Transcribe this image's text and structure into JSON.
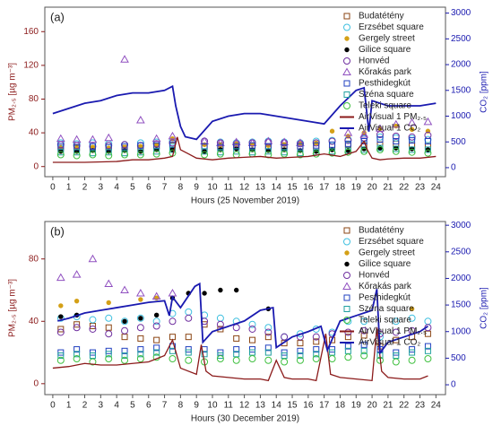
{
  "chart_data": [
    {
      "type": "combo",
      "label": "(a)",
      "xlabel": "Hours (25 November 2019)",
      "ylabel": "PM₂.₅ [µg m⁻³]",
      "y2label": "CO₂ [ppm]",
      "legend": "upper right",
      "xlim": [
        -0.5,
        24.6
      ],
      "xticks": [
        0,
        1,
        2,
        3,
        4,
        5,
        6,
        7,
        8,
        9,
        10,
        11,
        12,
        13,
        14,
        15,
        16,
        17,
        18,
        19,
        20,
        21,
        22,
        23,
        24
      ],
      "ylim": [
        -12,
        189
      ],
      "yticks": [
        0,
        40,
        80,
        120,
        160
      ],
      "y2lim": [
        -175,
        3115
      ],
      "y2ticks": [
        0,
        500,
        1000,
        1500,
        2000,
        2500,
        3000
      ],
      "x": [
        0.5,
        1.5,
        2.5,
        3.5,
        4.5,
        5.5,
        6.5,
        7.5,
        8.5,
        9.5,
        10.5,
        11.5,
        12.5,
        13.5,
        14.5,
        15.5,
        16.5,
        17.5,
        18.5,
        19.5,
        20.5,
        21.5,
        22.5,
        23.5
      ],
      "series": [
        {
          "name": "Budatétény",
          "color": "#8b4513",
          "marker": "square",
          "values": [
            22,
            22,
            21,
            23,
            22,
            22,
            24,
            25,
            null,
            24,
            25,
            24,
            23,
            24,
            25,
            24,
            23,
            24,
            26,
            25,
            26,
            27,
            25,
            24
          ]
        },
        {
          "name": "Erzsébet square",
          "color": "#40c0e0",
          "marker": "circle",
          "values": [
            28,
            27,
            28,
            27,
            26,
            28,
            29,
            30,
            null,
            30,
            29,
            28,
            29,
            30,
            29,
            28,
            30,
            31,
            32,
            33,
            35,
            34,
            33,
            32
          ]
        },
        {
          "name": "Gergely street",
          "color": "#d4a017",
          "marker": "dot",
          "values": [
            22,
            22,
            23,
            22,
            23,
            24,
            25,
            33,
            null,
            26,
            25,
            27,
            26,
            25,
            26,
            27,
            28,
            42,
            36,
            40,
            45,
            48,
            44,
            42
          ]
        },
        {
          "name": "Gilice square",
          "color": "#000000",
          "marker": "dot",
          "values": [
            18,
            18,
            19,
            18,
            19,
            18,
            20,
            20,
            null,
            18,
            20,
            21,
            20,
            19,
            20,
            19,
            18,
            20,
            19,
            21,
            22,
            22,
            21,
            20
          ]
        },
        {
          "name": "Honvéd",
          "color": "#7030a0",
          "marker": "circle",
          "values": [
            26,
            25,
            24,
            25,
            26,
            25,
            27,
            28,
            null,
            30,
            28,
            27,
            28,
            29,
            28,
            27,
            28,
            30,
            31,
            34,
            38,
            36,
            35,
            37
          ]
        },
        {
          "name": "Kőrakás park",
          "color": "#9050c0",
          "marker": "triangle",
          "values": [
            33,
            32,
            32,
            34,
            127,
            55,
            33,
            36,
            null,
            30,
            28,
            29,
            28,
            30,
            29,
            28,
            null,
            null,
            40,
            38,
            45,
            50,
            52,
            53
          ]
        },
        {
          "name": "Pesthidegkút",
          "color": "#2040c0",
          "marker": "square",
          "values": [
            24,
            23,
            24,
            23,
            24,
            25,
            25,
            26,
            null,
            24,
            23,
            24,
            25,
            24,
            23,
            24,
            25,
            26,
            27,
            30,
            32,
            30,
            31,
            30
          ]
        },
        {
          "name": "Széna square",
          "color": "#20a0a0",
          "marker": "square",
          "values": [
            17,
            17,
            16,
            17,
            16,
            17,
            18,
            20,
            null,
            18,
            17,
            18,
            17,
            18,
            17,
            16,
            17,
            18,
            19,
            20,
            22,
            21,
            20,
            20
          ]
        },
        {
          "name": "Teleki square",
          "color": "#40c040",
          "marker": "circle",
          "values": [
            14,
            13,
            14,
            13,
            14,
            14,
            15,
            16,
            null,
            14,
            15,
            14,
            15,
            14,
            15,
            14,
            15,
            16,
            17,
            18,
            20,
            18,
            17,
            16
          ]
        },
        {
          "name": "AirVisual 1 PM₂.₅",
          "color": "#8b1a1a",
          "marker": "line",
          "x": [
            0,
            2,
            4,
            5,
            6,
            7,
            7.5,
            7.8,
            8,
            8.5,
            9,
            10,
            11,
            12,
            13,
            14,
            15,
            16,
            17,
            18,
            19,
            19.5,
            19.7,
            20,
            20.5,
            21,
            22,
            23,
            24
          ],
          "values": [
            5,
            5,
            6,
            8,
            8,
            10,
            12,
            35,
            20,
            15,
            10,
            8,
            10,
            11,
            12,
            10,
            11,
            12,
            15,
            12,
            18,
            30,
            20,
            10,
            8,
            9,
            10,
            10,
            12
          ]
        },
        {
          "name": "AirVisual 1 CO₂",
          "color": "#1a1ab0",
          "marker": "line",
          "axis": "y2",
          "x": [
            0,
            1,
            2,
            3,
            4,
            5,
            6,
            7,
            7.5,
            7.7,
            8,
            8.3,
            9,
            10,
            11,
            12,
            13,
            14,
            15,
            16,
            17,
            18,
            19,
            19.5,
            19.8,
            20,
            21,
            22,
            23,
            24
          ],
          "values": [
            1050,
            1150,
            1250,
            1300,
            1400,
            1450,
            1450,
            1500,
            1580,
            1200,
            800,
            600,
            550,
            900,
            1000,
            1050,
            1050,
            1000,
            950,
            900,
            850,
            1200,
            1500,
            1550,
            700,
            1300,
            1200,
            1200,
            1200,
            1250
          ]
        }
      ]
    },
    {
      "type": "combo",
      "label": "(b)",
      "xlabel": "Hours (30 December 2019)",
      "ylabel": "PM₂.₅ [µg m⁻³]",
      "y2label": "CO₂ [ppm]",
      "legend": "upper right",
      "xlim": [
        -0.5,
        24.6
      ],
      "xticks": [
        0,
        1,
        2,
        3,
        4,
        5,
        6,
        7,
        8,
        9,
        10,
        11,
        12,
        13,
        14,
        15,
        16,
        17,
        18,
        19,
        20,
        21,
        22,
        23,
        24
      ],
      "ylim": [
        -7,
        104
      ],
      "yticks": [
        0,
        40,
        80
      ],
      "y2lim": [
        -185,
        3070
      ],
      "y2ticks": [
        0,
        500,
        1000,
        1500,
        2000,
        2500,
        3000
      ],
      "x": [
        0.5,
        1.5,
        2.5,
        3.5,
        4.5,
        5.5,
        6.5,
        7.5,
        8.5,
        9.5,
        10.5,
        11.5,
        12.5,
        13.5,
        14.5,
        15.5,
        16.5,
        17.5,
        18.5,
        19.5,
        20.5,
        21.5,
        22.5,
        23.5
      ],
      "series": [
        {
          "name": "Budatétény",
          "color": "#8b4513",
          "marker": "square",
          "values": [
            35,
            38,
            37,
            36,
            30,
            29,
            28,
            30,
            30,
            38,
            35,
            29,
            28,
            30,
            26,
            26,
            27,
            28,
            30,
            31,
            24,
            28,
            30,
            32
          ]
        },
        {
          "name": "Erzsébet square",
          "color": "#40c0e0",
          "marker": "circle",
          "values": [
            42,
            43,
            41,
            42,
            40,
            42,
            40,
            45,
            46,
            44,
            42,
            40,
            38,
            36,
            30,
            32,
            35,
            33,
            40,
            40,
            30,
            40,
            42,
            40
          ]
        },
        {
          "name": "Gergely street",
          "color": "#d4a017",
          "marker": "dot",
          "values": [
            50,
            53,
            null,
            52,
            null,
            54,
            55,
            null,
            58,
            null,
            null,
            null,
            null,
            null,
            null,
            null,
            null,
            null,
            null,
            null,
            null,
            null,
            48,
            null
          ]
        },
        {
          "name": "Gilice square",
          "color": "#000000",
          "marker": "dot",
          "values": [
            43,
            44,
            null,
            null,
            40,
            42,
            44,
            55,
            58,
            58,
            60,
            60,
            null,
            48,
            null,
            null,
            null,
            null,
            null,
            null,
            null,
            null,
            null,
            null
          ]
        },
        {
          "name": "Honvéd",
          "color": "#7030a0",
          "marker": "circle",
          "values": [
            33,
            36,
            35,
            32,
            34,
            36,
            37,
            40,
            42,
            40,
            38,
            36,
            35,
            33,
            30,
            30,
            30,
            32,
            33,
            34,
            32,
            33,
            34,
            36
          ]
        },
        {
          "name": "Kőrakás park",
          "color": "#9050c0",
          "marker": "triangle",
          "values": [
            68,
            70,
            80,
            64,
            60,
            58,
            56,
            58,
            null,
            null,
            null,
            null,
            null,
            null,
            null,
            null,
            null,
            null,
            null,
            null,
            null,
            null,
            null,
            null
          ]
        },
        {
          "name": "Pesthidegkút",
          "color": "#2040c0",
          "marker": "square",
          "values": [
            20,
            22,
            20,
            21,
            21,
            22,
            23,
            24,
            22,
            22,
            20,
            22,
            22,
            23,
            20,
            21,
            22,
            22,
            24,
            25,
            22,
            20,
            22,
            24
          ]
        },
        {
          "name": "Széna square",
          "color": "#20a0a0",
          "marker": "square",
          "values": [
            18,
            19,
            18,
            19,
            18,
            19,
            20,
            21,
            20,
            19,
            18,
            19,
            20,
            20,
            18,
            18,
            19,
            20,
            21,
            21,
            18,
            18,
            20,
            21
          ]
        },
        {
          "name": "Teleki square",
          "color": "#40c040",
          "marker": "circle",
          "values": [
            15,
            16,
            14,
            16,
            15,
            16,
            17,
            16,
            15,
            14,
            16,
            15,
            16,
            15,
            14,
            15,
            16,
            16,
            17,
            18,
            15,
            14,
            15,
            16
          ]
        },
        {
          "name": "AirVisual 1 PM₂.₅",
          "color": "#8b1a1a",
          "marker": "line",
          "x": [
            0,
            1,
            2,
            3,
            4,
            5,
            6,
            7,
            7.5,
            8,
            9,
            9.3,
            9.6,
            10,
            11,
            12,
            13,
            13.5,
            14,
            14.5,
            15,
            16,
            16.5,
            17.1,
            17.4,
            18,
            19,
            20,
            20.3,
            20.6,
            21,
            22,
            23,
            23.5
          ],
          "values": [
            10,
            11,
            13,
            12,
            12,
            13,
            14,
            18,
            28,
            10,
            6,
            25,
            8,
            5,
            4,
            3,
            3,
            2,
            15,
            4,
            3,
            3,
            2,
            32,
            6,
            4,
            3,
            2,
            36,
            8,
            4,
            3,
            3,
            5
          ]
        },
        {
          "name": "AirVisual 1 CO₂",
          "color": "#1a1ab0",
          "marker": "line",
          "axis": "y2",
          "x": [
            0.3,
            1,
            2,
            3,
            4,
            5,
            6,
            7,
            7.3,
            7.5,
            8,
            8.9,
            9.2,
            9.4,
            10,
            11,
            12,
            13,
            13.8,
            14,
            15,
            16,
            16.8,
            17.2,
            18,
            19,
            20,
            20.3,
            20.5,
            21,
            22,
            23,
            23.5
          ],
          "values": [
            1200,
            1250,
            1350,
            1400,
            1450,
            1500,
            1550,
            1580,
            1300,
            1650,
            1450,
            1850,
            1900,
            800,
            1000,
            1100,
            1200,
            1400,
            1450,
            700,
            900,
            1000,
            1100,
            650,
            1200,
            1300,
            1400,
            1800,
            600,
            800,
            900,
            1000,
            1100
          ]
        }
      ]
    }
  ]
}
